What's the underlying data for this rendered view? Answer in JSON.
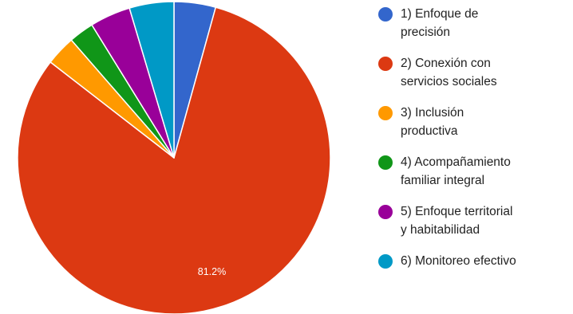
{
  "chart_data": {
    "type": "pie",
    "title": "",
    "categories": [
      "1) Enfoque de\nprecisión",
      "2) Conexión con\nservicios sociales",
      "3) Inclusión\nproductiva",
      "4) Acompañamiento\nfamiliar integral",
      "5) Enfoque territorial\ny habitabilidad",
      "6) Monitoreo efectivo"
    ],
    "values": [
      4.3,
      81.2,
      3.1,
      2.6,
      4.2,
      4.6
    ],
    "colors": [
      "#3366cc",
      "#dc3912",
      "#ff9900",
      "#109618",
      "#990099",
      "#0099c6"
    ],
    "data_labels": [
      "",
      "81.2%",
      "",
      "",
      "",
      ""
    ],
    "legend_position": "right",
    "start_angle": "top",
    "direction": "clockwise"
  }
}
